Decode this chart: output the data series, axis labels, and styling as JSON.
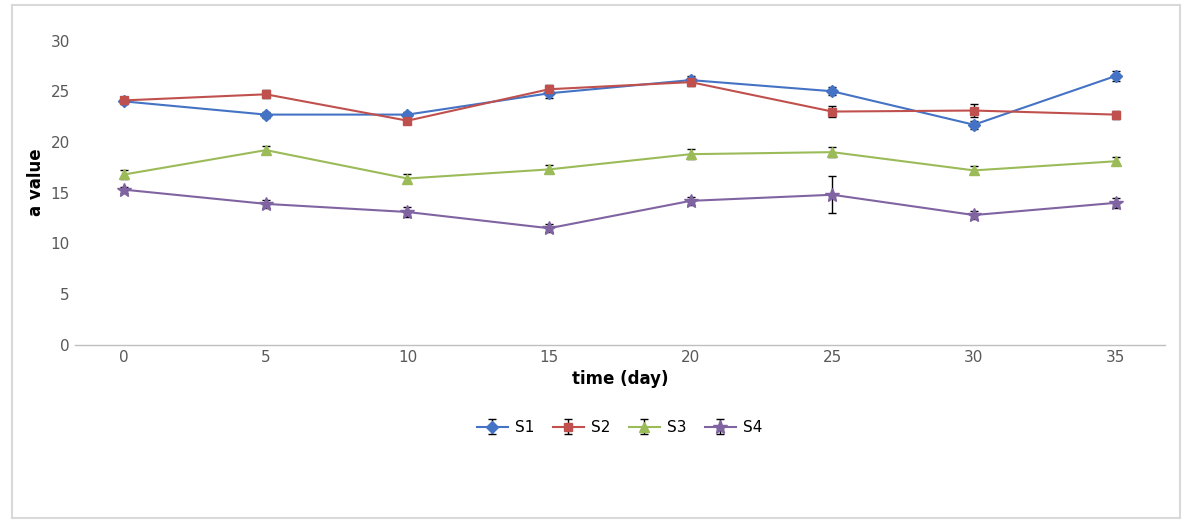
{
  "x": [
    0,
    5,
    10,
    15,
    20,
    25,
    30,
    35
  ],
  "S1": [
    24.0,
    22.7,
    22.7,
    24.8,
    26.1,
    25.0,
    21.7,
    26.5
  ],
  "S2": [
    24.1,
    24.7,
    22.1,
    25.2,
    25.9,
    23.0,
    23.1,
    22.7
  ],
  "S3": [
    16.8,
    19.2,
    16.4,
    17.3,
    18.8,
    19.0,
    17.2,
    18.1
  ],
  "S4": [
    15.3,
    13.9,
    13.1,
    11.5,
    14.2,
    14.8,
    12.8,
    14.0
  ],
  "S1_err": [
    0.3,
    0.3,
    0.3,
    0.5,
    0.4,
    0.4,
    0.4,
    0.5
  ],
  "S2_err": [
    0.3,
    0.4,
    0.3,
    0.4,
    0.4,
    0.5,
    0.6,
    0.4
  ],
  "S3_err": [
    0.4,
    0.4,
    0.4,
    0.4,
    0.5,
    0.5,
    0.4,
    0.4
  ],
  "S4_err": [
    0.3,
    0.4,
    0.5,
    0.4,
    0.4,
    1.8,
    0.4,
    0.5
  ],
  "colors": {
    "S1": "#4472C4",
    "S2": "#C0504D",
    "S3": "#9BBB59",
    "S4": "#8064A2"
  },
  "markers": {
    "S1": "D",
    "S2": "s",
    "S3": "^",
    "S4": "*"
  },
  "markersizes": {
    "S1": 6,
    "S2": 6,
    "S3": 7,
    "S4": 10
  },
  "xlabel": "time (day)",
  "ylabel": "a value",
  "ylim": [
    0,
    32
  ],
  "yticks": [
    0,
    5,
    10,
    15,
    20,
    25,
    30
  ],
  "xticks": [
    0,
    5,
    10,
    15,
    20,
    25,
    30,
    35
  ],
  "tick_color": "#595959",
  "spine_color": "#BFBFBF",
  "legend_labels": [
    "S1",
    "S2",
    "S3",
    "S4"
  ],
  "outer_border_color": "#D9D9D9"
}
